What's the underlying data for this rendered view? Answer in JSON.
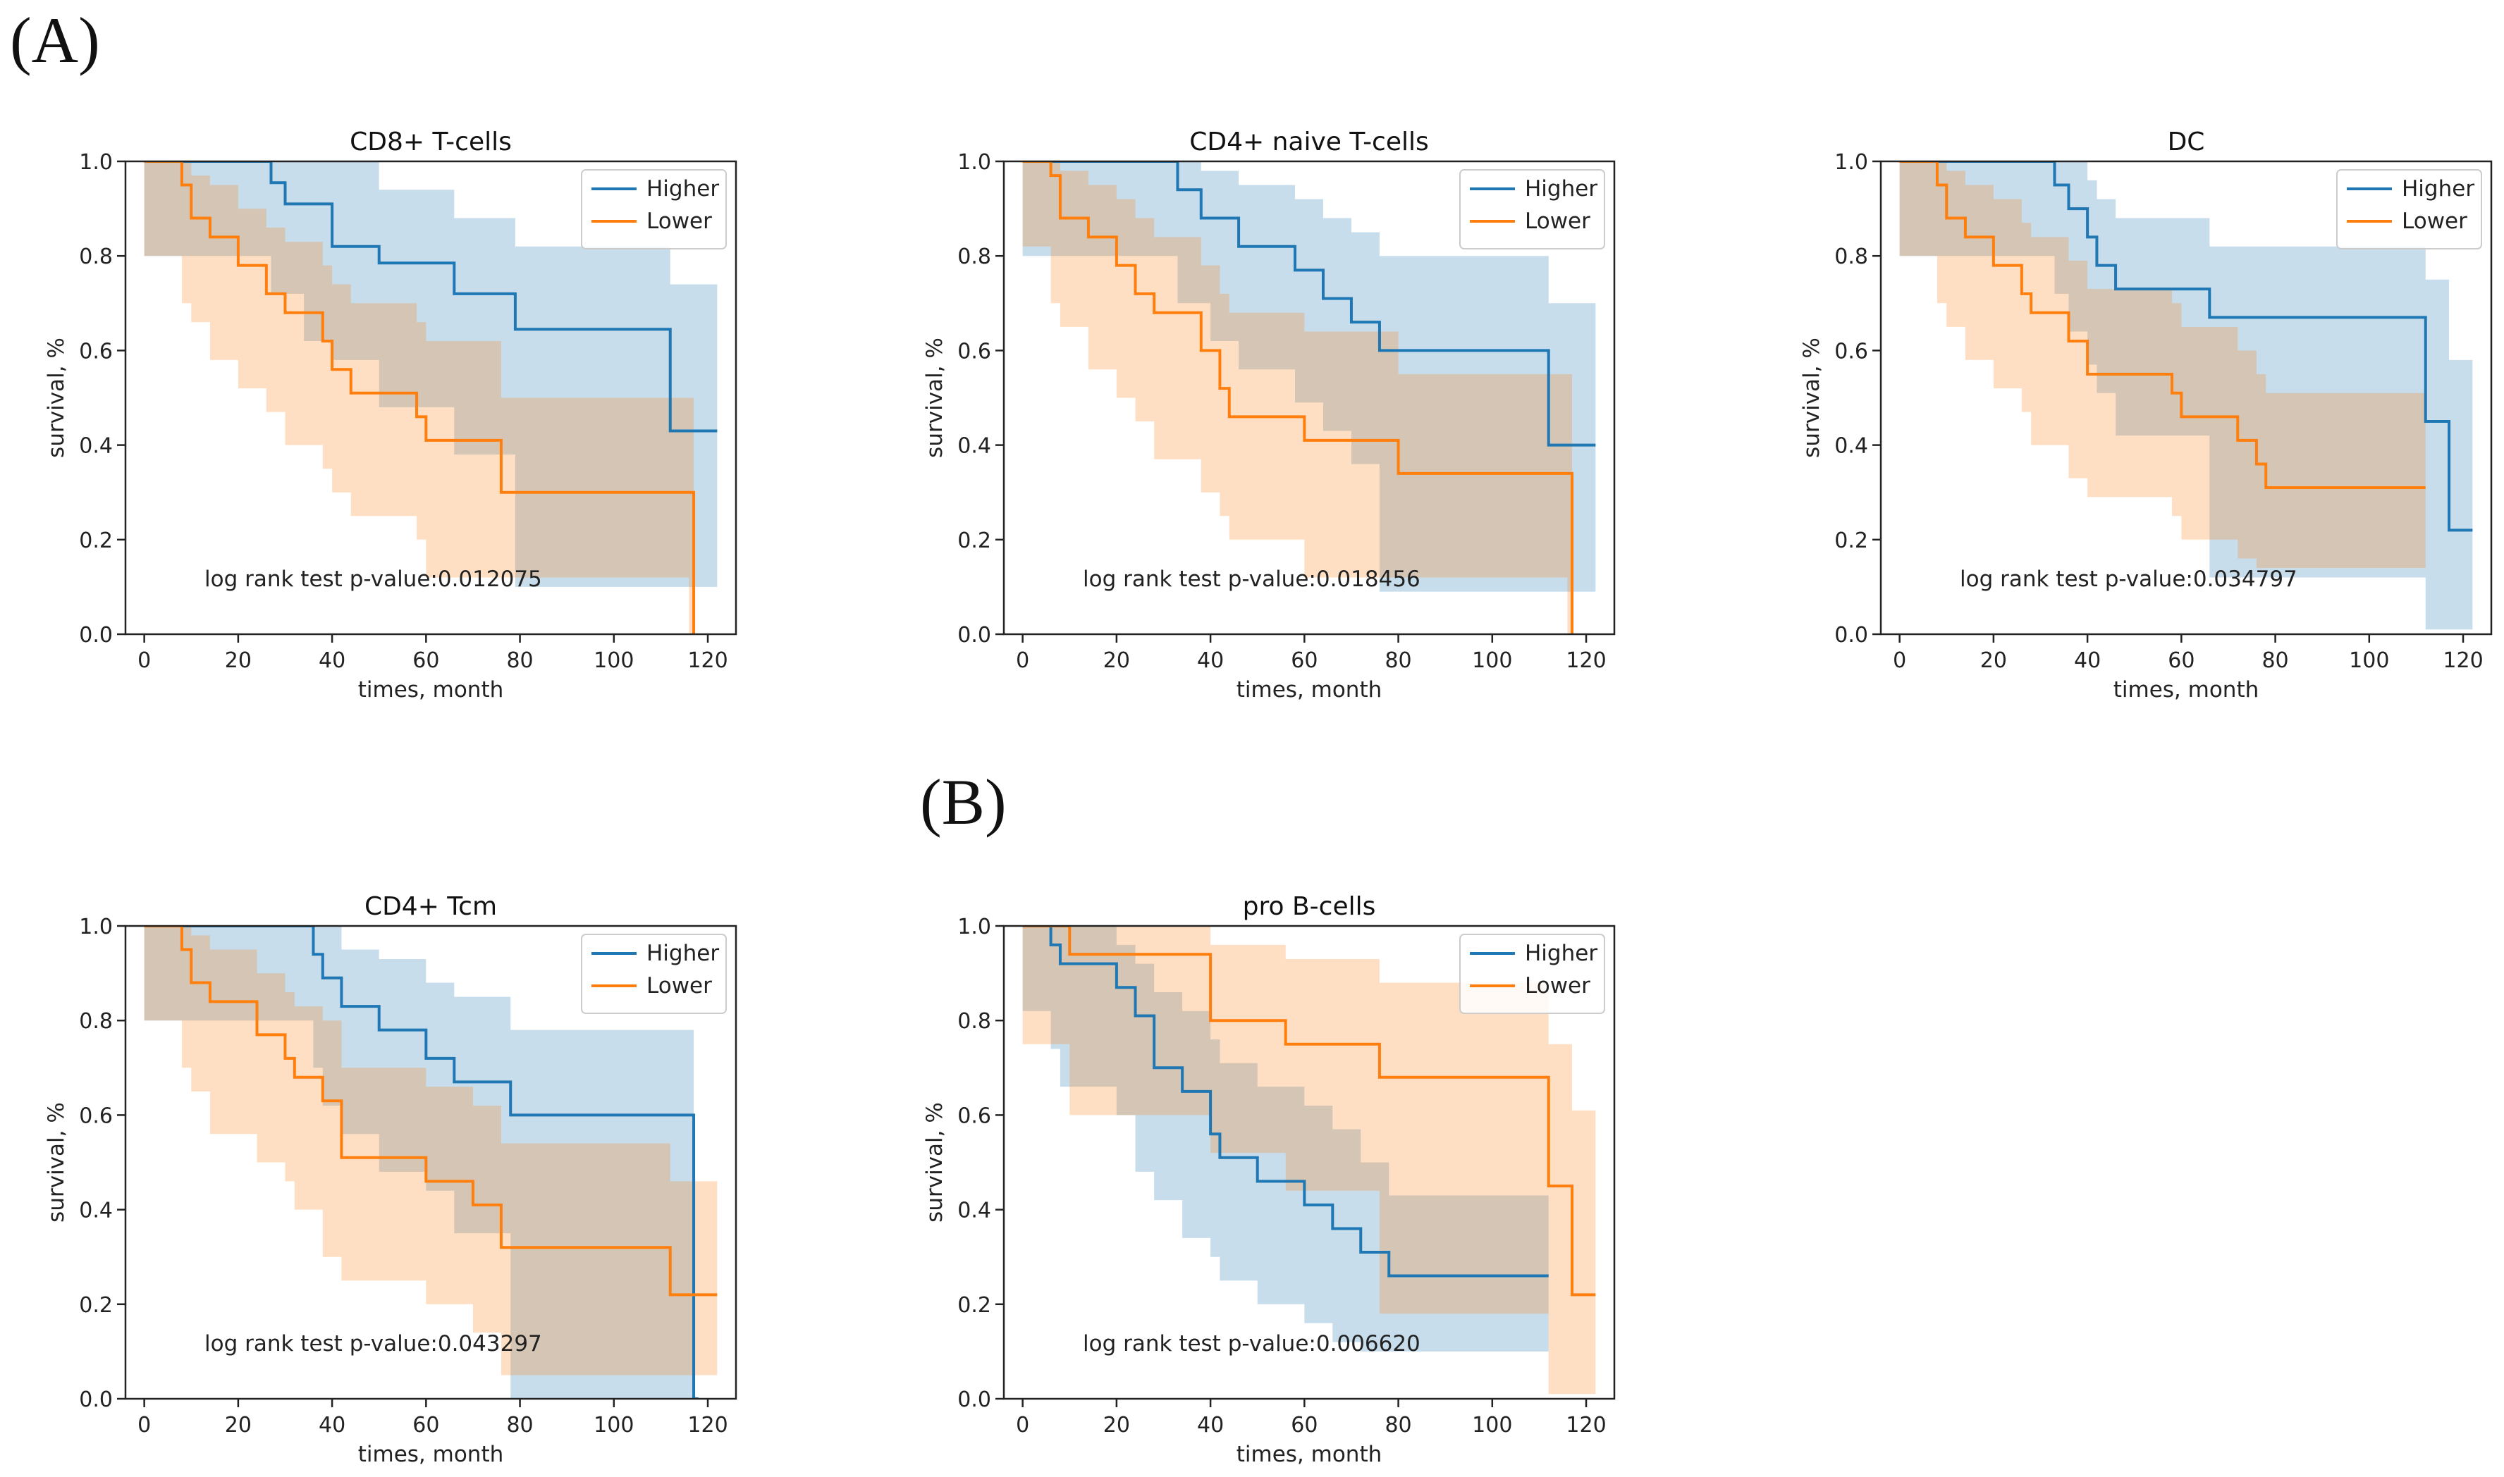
{
  "figure_labels": {
    "a": "(A)",
    "b": "(B)"
  },
  "colors": {
    "higher": "#1f77b4",
    "lower": "#ff7f0e"
  },
  "chart_data": [
    {
      "type": "line",
      "subtype": "kaplan-meier",
      "title": "CD8+ T-cells",
      "xlabel": "times, month",
      "ylabel": "survival, %",
      "xlim": [
        -4,
        126
      ],
      "ylim": [
        0,
        1
      ],
      "xticks": [
        0,
        20,
        40,
        60,
        80,
        100,
        120
      ],
      "yticks": [
        0.0,
        0.2,
        0.4,
        0.6,
        0.8,
        1.0
      ],
      "annotation": "log rank test p-value:0.012075",
      "legend": [
        "Higher",
        "Lower"
      ],
      "legend_position": "top-right",
      "series": [
        {
          "name": "Higher",
          "x": [
            0,
            27,
            30,
            34,
            40,
            50,
            66,
            79,
            112,
            122
          ],
          "y": [
            1.0,
            0.955,
            0.91,
            0.91,
            0.82,
            0.785,
            0.72,
            0.645,
            0.43,
            0.43
          ],
          "lower_ci": [
            1.0,
            0.8,
            0.72,
            0.72,
            0.62,
            0.58,
            0.48,
            0.38,
            0.1,
            0.1
          ],
          "upper_ci": [
            1.0,
            1.0,
            1.0,
            1.0,
            1.0,
            0.94,
            0.88,
            0.82,
            0.74,
            0.74
          ]
        },
        {
          "name": "Lower",
          "x": [
            0,
            8,
            10,
            14,
            20,
            26,
            30,
            38,
            40,
            44,
            58,
            60,
            76,
            116,
            117
          ],
          "y": [
            1.0,
            0.95,
            0.88,
            0.84,
            0.78,
            0.72,
            0.68,
            0.62,
            0.56,
            0.51,
            0.46,
            0.41,
            0.3,
            0.3,
            0.0
          ],
          "lower_ci": [
            1.0,
            0.8,
            0.7,
            0.66,
            0.58,
            0.52,
            0.47,
            0.4,
            0.35,
            0.3,
            0.25,
            0.2,
            0.12,
            0.12,
            0.0
          ],
          "upper_ci": [
            1.0,
            1.0,
            0.97,
            0.95,
            0.9,
            0.86,
            0.83,
            0.78,
            0.74,
            0.7,
            0.66,
            0.62,
            0.5,
            0.5,
            0.0
          ]
        }
      ]
    },
    {
      "type": "line",
      "subtype": "kaplan-meier",
      "title": "CD4+ naive T-cells",
      "xlabel": "times, month",
      "ylabel": "survival, %",
      "xlim": [
        -4,
        126
      ],
      "ylim": [
        0,
        1
      ],
      "xticks": [
        0,
        20,
        40,
        60,
        80,
        100,
        120
      ],
      "yticks": [
        0.0,
        0.2,
        0.4,
        0.6,
        0.8,
        1.0
      ],
      "annotation": "log rank test p-value:0.018456",
      "legend": [
        "Higher",
        "Lower"
      ],
      "legend_position": "top-right",
      "series": [
        {
          "name": "Higher",
          "x": [
            0,
            33,
            38,
            40,
            46,
            58,
            64,
            70,
            76,
            112,
            122
          ],
          "y": [
            1.0,
            0.94,
            0.88,
            0.88,
            0.82,
            0.77,
            0.71,
            0.66,
            0.6,
            0.4,
            0.4
          ],
          "lower_ci": [
            1.0,
            0.8,
            0.7,
            0.7,
            0.62,
            0.56,
            0.49,
            0.43,
            0.36,
            0.09,
            0.09
          ],
          "upper_ci": [
            1.0,
            1.0,
            0.98,
            0.98,
            0.95,
            0.92,
            0.88,
            0.85,
            0.8,
            0.7,
            0.7
          ]
        },
        {
          "name": "Lower",
          "x": [
            0,
            6,
            8,
            14,
            20,
            24,
            28,
            38,
            42,
            44,
            60,
            80,
            116,
            117
          ],
          "y": [
            1.0,
            0.97,
            0.88,
            0.84,
            0.78,
            0.72,
            0.68,
            0.6,
            0.52,
            0.46,
            0.41,
            0.34,
            0.34,
            0.0
          ],
          "lower_ci": [
            1.0,
            0.82,
            0.7,
            0.65,
            0.56,
            0.5,
            0.45,
            0.37,
            0.3,
            0.25,
            0.2,
            0.12,
            0.12,
            0.0
          ],
          "upper_ci": [
            1.0,
            1.0,
            0.98,
            0.95,
            0.92,
            0.88,
            0.84,
            0.78,
            0.72,
            0.68,
            0.64,
            0.55,
            0.55,
            0.0
          ]
        }
      ]
    },
    {
      "type": "line",
      "subtype": "kaplan-meier",
      "title": "DC",
      "xlabel": "times, month",
      "ylabel": "survival, %",
      "xlim": [
        -4,
        126
      ],
      "ylim": [
        0,
        1
      ],
      "xticks": [
        0,
        20,
        40,
        60,
        80,
        100,
        120
      ],
      "yticks": [
        0.0,
        0.2,
        0.4,
        0.6,
        0.8,
        1.0
      ],
      "annotation": "log rank test p-value:0.034797",
      "legend": [
        "Higher",
        "Lower"
      ],
      "legend_position": "top-right",
      "series": [
        {
          "name": "Higher",
          "x": [
            0,
            33,
            36,
            40,
            42,
            46,
            66,
            112,
            117,
            122
          ],
          "y": [
            1.0,
            0.95,
            0.9,
            0.84,
            0.78,
            0.73,
            0.67,
            0.45,
            0.22,
            0.22
          ],
          "lower_ci": [
            1.0,
            0.8,
            0.72,
            0.64,
            0.57,
            0.51,
            0.42,
            0.12,
            0.01,
            0.01
          ],
          "upper_ci": [
            1.0,
            1.0,
            1.0,
            0.96,
            0.92,
            0.88,
            0.82,
            0.75,
            0.58,
            0.58
          ]
        },
        {
          "name": "Lower",
          "x": [
            0,
            8,
            10,
            14,
            20,
            26,
            28,
            36,
            40,
            58,
            60,
            72,
            76,
            78,
            112
          ],
          "y": [
            1.0,
            0.95,
            0.88,
            0.84,
            0.78,
            0.72,
            0.68,
            0.62,
            0.55,
            0.51,
            0.46,
            0.41,
            0.36,
            0.31,
            0.31
          ],
          "lower_ci": [
            1.0,
            0.8,
            0.7,
            0.65,
            0.58,
            0.52,
            0.47,
            0.4,
            0.33,
            0.29,
            0.25,
            0.2,
            0.16,
            0.14,
            0.14
          ],
          "upper_ci": [
            1.0,
            1.0,
            0.98,
            0.95,
            0.92,
            0.87,
            0.84,
            0.79,
            0.73,
            0.7,
            0.65,
            0.6,
            0.55,
            0.51,
            0.51
          ]
        }
      ]
    },
    {
      "type": "line",
      "subtype": "kaplan-meier",
      "title": "CD4+ Tcm",
      "xlabel": "times, month",
      "ylabel": "survival, %",
      "xlim": [
        -4,
        126
      ],
      "ylim": [
        0,
        1
      ],
      "xticks": [
        0,
        20,
        40,
        60,
        80,
        100,
        120
      ],
      "yticks": [
        0.0,
        0.2,
        0.4,
        0.6,
        0.8,
        1.0
      ],
      "annotation": "log rank test p-value:0.043297",
      "legend": [
        "Higher",
        "Lower"
      ],
      "legend_position": "top-right",
      "series": [
        {
          "name": "Higher",
          "x": [
            0,
            36,
            38,
            42,
            50,
            60,
            66,
            78,
            117,
            118
          ],
          "y": [
            1.0,
            0.94,
            0.89,
            0.83,
            0.78,
            0.72,
            0.67,
            0.6,
            0.0,
            0.0
          ],
          "lower_ci": [
            1.0,
            0.8,
            0.7,
            0.62,
            0.56,
            0.48,
            0.44,
            0.35,
            0.0,
            0.0
          ],
          "upper_ci": [
            1.0,
            1.0,
            1.0,
            0.95,
            0.93,
            0.88,
            0.85,
            0.78,
            0.0,
            0.0
          ]
        },
        {
          "name": "Lower",
          "x": [
            0,
            8,
            10,
            14,
            24,
            30,
            32,
            38,
            42,
            60,
            70,
            76,
            112,
            122
          ],
          "y": [
            1.0,
            0.95,
            0.88,
            0.84,
            0.77,
            0.72,
            0.68,
            0.63,
            0.51,
            0.46,
            0.41,
            0.32,
            0.22,
            0.22
          ],
          "lower_ci": [
            1.0,
            0.8,
            0.7,
            0.65,
            0.56,
            0.5,
            0.46,
            0.4,
            0.3,
            0.25,
            0.2,
            0.14,
            0.05,
            0.05
          ],
          "upper_ci": [
            1.0,
            1.0,
            0.98,
            0.95,
            0.9,
            0.86,
            0.83,
            0.8,
            0.7,
            0.66,
            0.62,
            0.54,
            0.46,
            0.46
          ]
        }
      ]
    },
    {
      "type": "line",
      "subtype": "kaplan-meier",
      "title": "pro B-cells",
      "xlabel": "times, month",
      "ylabel": "survival, %",
      "xlim": [
        -4,
        126
      ],
      "ylim": [
        0,
        1
      ],
      "xticks": [
        0,
        20,
        40,
        60,
        80,
        100,
        120
      ],
      "yticks": [
        0.0,
        0.2,
        0.4,
        0.6,
        0.8,
        1.0
      ],
      "annotation": "log rank test p-value:0.006620",
      "legend": [
        "Higher",
        "Lower"
      ],
      "legend_position": "top-right",
      "series": [
        {
          "name": "Higher",
          "x": [
            0,
            6,
            8,
            20,
            24,
            28,
            34,
            40,
            42,
            50,
            60,
            66,
            72,
            78,
            112
          ],
          "y": [
            1.0,
            0.96,
            0.92,
            0.87,
            0.81,
            0.7,
            0.65,
            0.56,
            0.51,
            0.46,
            0.41,
            0.36,
            0.31,
            0.26,
            0.26
          ],
          "lower_ci": [
            1.0,
            0.82,
            0.74,
            0.66,
            0.6,
            0.48,
            0.42,
            0.34,
            0.3,
            0.25,
            0.2,
            0.16,
            0.12,
            0.1,
            0.1
          ],
          "upper_ci": [
            1.0,
            1.0,
            1.0,
            0.96,
            0.92,
            0.86,
            0.82,
            0.76,
            0.71,
            0.66,
            0.62,
            0.57,
            0.5,
            0.43,
            0.43
          ]
        },
        {
          "name": "Lower",
          "x": [
            0,
            10,
            40,
            56,
            76,
            112,
            117,
            122
          ],
          "y": [
            1.0,
            0.94,
            0.8,
            0.75,
            0.68,
            0.45,
            0.22,
            0.22
          ],
          "lower_ci": [
            1.0,
            0.75,
            0.6,
            0.52,
            0.44,
            0.18,
            0.01,
            0.01
          ],
          "upper_ci": [
            1.0,
            1.0,
            0.96,
            0.93,
            0.88,
            0.75,
            0.61,
            0.61
          ]
        }
      ]
    }
  ]
}
